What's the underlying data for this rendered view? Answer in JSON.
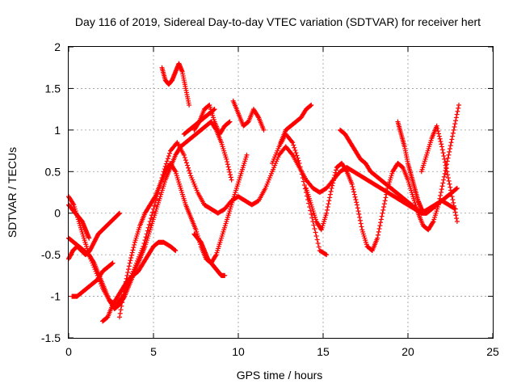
{
  "chart_data": {
    "type": "scatter",
    "title": "Day 116 of 2019, Sidereal Day-to-day VTEC variation (SDTVAR) for receiver hert",
    "xlabel": "GPS time / hours",
    "ylabel": "SDTVAR / TECUs",
    "xlim": [
      0,
      25
    ],
    "ylim": [
      -1.5,
      2
    ],
    "xticks": [
      "0",
      "5",
      "10",
      "15",
      "20",
      "25"
    ],
    "yticks": [
      "-1.5",
      "-1",
      "-0.5",
      "0",
      "0.5",
      "1",
      "1.5",
      "2"
    ],
    "grid": true,
    "marker": "+",
    "color": "#ff0000",
    "series": [
      {
        "x": [
          0.0,
          0.3,
          0.6,
          0.9,
          1.2,
          1.6,
          2.0,
          2.4,
          2.8,
          3.2,
          3.6,
          4.0,
          4.4,
          4.8,
          5.2,
          5.6,
          6.0,
          6.4,
          6.8,
          7.2,
          7.6,
          8.0,
          8.4,
          8.8,
          9.2,
          9.6,
          10.0,
          10.4,
          10.8,
          11.2,
          11.6,
          12.0,
          12.4,
          12.8,
          13.2,
          13.6,
          14.0,
          14.4,
          14.8,
          15.2,
          15.6,
          16.0,
          16.4,
          16.8,
          17.2,
          17.6,
          18.0,
          18.4,
          18.8,
          19.2,
          19.6,
          20.0,
          20.4,
          20.8,
          21.2,
          21.6,
          22.0,
          22.4,
          22.8
        ],
        "y": [
          0.2,
          0.1,
          -0.1,
          -0.3,
          -0.5,
          -0.7,
          -0.9,
          -1.05,
          -1.1,
          -1.0,
          -0.8,
          -0.6,
          -0.4,
          -0.1,
          0.2,
          0.5,
          0.75,
          0.85,
          0.7,
          0.45,
          0.25,
          0.1,
          0.05,
          0.0,
          0.05,
          0.15,
          0.2,
          0.15,
          0.1,
          0.15,
          0.3,
          0.5,
          0.7,
          0.8,
          0.7,
          0.55,
          0.4,
          0.3,
          0.25,
          0.3,
          0.4,
          0.5,
          0.55,
          0.5,
          0.45,
          0.4,
          0.35,
          0.3,
          0.25,
          0.2,
          0.15,
          0.1,
          0.05,
          0.0,
          0.05,
          0.1,
          0.15,
          0.1,
          0.05
        ]
      },
      {
        "x": [
          0.0,
          0.3,
          0.6,
          0.9,
          1.2,
          1.5,
          1.8,
          2.1,
          2.4,
          2.7,
          3.0,
          3.3,
          3.6,
          3.9,
          4.2,
          4.5,
          4.8,
          5.1,
          5.4,
          5.7,
          6.0,
          6.3,
          6.6,
          6.9,
          7.2,
          7.5,
          7.8,
          8.1,
          8.4,
          8.7,
          9.0,
          9.3,
          9.6
        ],
        "y": [
          -0.3,
          -0.35,
          -0.4,
          -0.45,
          -0.5,
          -0.6,
          -0.75,
          -0.9,
          -1.05,
          -1.15,
          -1.1,
          -1.0,
          -0.85,
          -0.7,
          -0.55,
          -0.4,
          -0.2,
          0.0,
          0.2,
          0.4,
          0.55,
          0.7,
          0.8,
          0.85,
          0.9,
          0.95,
          1.0,
          1.05,
          1.1,
          1.0,
          0.85,
          0.65,
          0.4
        ]
      },
      {
        "x": [
          0.0,
          0.25,
          0.5,
          0.75,
          1.0,
          1.25,
          1.5,
          1.75,
          2.0,
          2.25,
          2.5,
          2.75,
          3.0
        ],
        "y": [
          -0.55,
          -0.45,
          -0.4,
          -0.45,
          -0.5,
          -0.45,
          -0.35,
          -0.25,
          -0.2,
          -0.15,
          -0.1,
          -0.05,
          0.0
        ]
      },
      {
        "x": [
          0.0,
          0.2,
          0.4,
          0.6,
          0.8,
          1.0,
          1.2
        ],
        "y": [
          0.1,
          0.05,
          0.0,
          -0.05,
          -0.1,
          -0.2,
          -0.3
        ]
      },
      {
        "x": [
          0.2,
          0.5,
          0.8,
          1.1,
          1.4,
          1.7,
          2.0,
          2.3,
          2.6
        ],
        "y": [
          -1.0,
          -1.0,
          -0.95,
          -0.9,
          -0.85,
          -0.8,
          -0.7,
          -0.65,
          -0.6
        ]
      },
      {
        "x": [
          2.0,
          2.3,
          2.6,
          2.9,
          3.2,
          3.5,
          3.8,
          4.1,
          4.4,
          4.7,
          5.0,
          5.3,
          5.6,
          6.0,
          6.3
        ],
        "y": [
          -1.3,
          -1.25,
          -1.1,
          -1.0,
          -0.9,
          -0.8,
          -0.75,
          -0.7,
          -0.6,
          -0.5,
          -0.4,
          -0.35,
          -0.35,
          -0.4,
          -0.45
        ]
      },
      {
        "x": [
          3.0,
          3.3,
          3.6,
          3.9,
          4.2,
          4.5,
          4.8,
          5.1,
          5.4,
          5.7,
          6.0,
          6.3,
          6.6,
          6.9,
          7.2,
          7.5,
          7.8,
          8.1,
          8.4,
          8.7,
          9.0,
          9.3,
          9.6,
          9.9,
          10.2,
          10.5
        ],
        "y": [
          -1.25,
          -0.9,
          -0.6,
          -0.35,
          -0.15,
          0.0,
          0.1,
          0.2,
          0.35,
          0.5,
          0.6,
          0.5,
          0.3,
          0.1,
          -0.05,
          -0.2,
          -0.4,
          -0.55,
          -0.6,
          -0.5,
          -0.3,
          -0.1,
          0.1,
          0.3,
          0.5,
          0.7
        ]
      },
      {
        "x": [
          5.5,
          5.7,
          5.9,
          6.1,
          6.3,
          6.5,
          6.7,
          6.9,
          7.1
        ],
        "y": [
          1.75,
          1.6,
          1.55,
          1.6,
          1.7,
          1.8,
          1.7,
          1.5,
          1.3
        ]
      },
      {
        "x": [
          7.4,
          7.7,
          8.0,
          8.3,
          8.6,
          8.9,
          9.2,
          9.5
        ],
        "y": [
          1.0,
          1.1,
          1.25,
          1.3,
          1.1,
          0.95,
          1.05,
          1.1
        ]
      },
      {
        "x": [
          9.7,
          10.0,
          10.3,
          10.6,
          10.9,
          11.2,
          11.5
        ],
        "y": [
          1.35,
          1.2,
          1.05,
          1.1,
          1.25,
          1.15,
          1.0
        ]
      },
      {
        "x": [
          7.4,
          7.6,
          7.8,
          8.0,
          8.2,
          8.4,
          8.6,
          8.8,
          9.0,
          9.2
        ],
        "y": [
          -0.25,
          -0.3,
          -0.35,
          -0.45,
          -0.55,
          -0.6,
          -0.65,
          -0.7,
          -0.75,
          -0.75
        ]
      },
      {
        "x": [
          6.8,
          7.1,
          7.4,
          7.7,
          8.0,
          8.3,
          8.6
        ],
        "y": [
          0.95,
          1.0,
          1.05,
          1.1,
          1.15,
          1.2,
          1.25
        ]
      },
      {
        "x": [
          12.0,
          12.4,
          12.8,
          13.2,
          13.6,
          14.0,
          14.4,
          14.8,
          15.2
        ],
        "y": [
          0.6,
          0.8,
          0.95,
          0.85,
          0.6,
          0.25,
          -0.1,
          -0.45,
          -0.5
        ]
      },
      {
        "x": [
          12.5,
          12.8,
          13.1,
          13.4,
          13.7,
          14.0,
          14.3
        ],
        "y": [
          0.85,
          1.0,
          1.05,
          1.1,
          1.15,
          1.25,
          1.3
        ]
      },
      {
        "x": [
          14.0,
          14.3,
          14.6,
          14.9,
          15.2,
          15.5,
          15.8,
          16.1,
          16.4,
          16.7,
          17.0,
          17.3,
          17.6,
          17.9,
          18.2,
          18.5,
          18.8,
          19.1,
          19.4,
          19.7,
          20.0,
          20.3,
          20.6,
          20.9,
          21.2,
          21.5,
          21.8,
          22.1,
          22.4,
          22.7,
          23.0
        ],
        "y": [
          0.3,
          0.1,
          -0.1,
          -0.2,
          0.0,
          0.3,
          0.55,
          0.6,
          0.5,
          0.35,
          0.1,
          -0.2,
          -0.4,
          -0.45,
          -0.3,
          0.0,
          0.3,
          0.5,
          0.6,
          0.55,
          0.4,
          0.2,
          0.0,
          -0.15,
          -0.2,
          -0.1,
          0.1,
          0.4,
          0.7,
          1.0,
          1.3
        ]
      },
      {
        "x": [
          16.0,
          16.3,
          16.6,
          16.9,
          17.2,
          17.5,
          17.8,
          18.1,
          18.4,
          18.7,
          19.0,
          19.3,
          19.6,
          19.9,
          20.2,
          20.5,
          20.8,
          21.1,
          21.4,
          21.7,
          22.0,
          22.3,
          22.6,
          22.9
        ],
        "y": [
          1.0,
          0.95,
          0.85,
          0.75,
          0.65,
          0.6,
          0.5,
          0.45,
          0.4,
          0.35,
          0.3,
          0.25,
          0.2,
          0.15,
          0.1,
          0.05,
          0.0,
          0.0,
          0.05,
          0.1,
          0.15,
          0.2,
          0.25,
          0.3
        ]
      },
      {
        "x": [
          19.4,
          19.6,
          19.8,
          20.0,
          20.2,
          20.4,
          20.6,
          20.8,
          21.0
        ],
        "y": [
          1.1,
          0.95,
          0.8,
          0.6,
          0.45,
          0.3,
          0.15,
          0.05,
          0.0
        ]
      },
      {
        "x": [
          20.8,
          21.1,
          21.4,
          21.7,
          22.0,
          22.3,
          22.6,
          22.9
        ],
        "y": [
          0.5,
          0.7,
          0.9,
          1.05,
          0.8,
          0.5,
          0.2,
          -0.1
        ]
      }
    ]
  }
}
